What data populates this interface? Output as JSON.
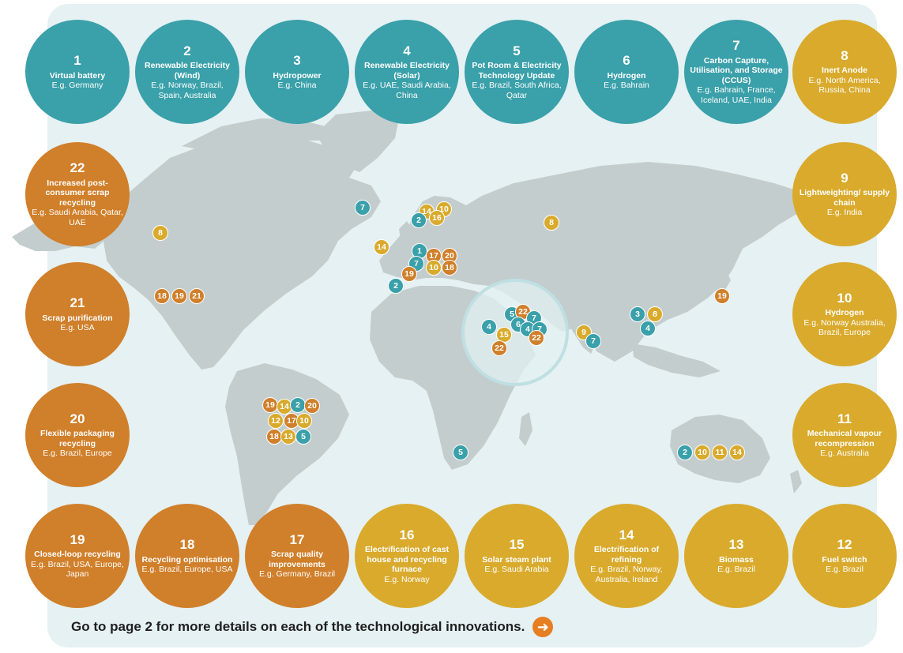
{
  "colors": {
    "teal": "#3aa0aa",
    "gold": "#d9aa2c",
    "orange": "#d07f2a",
    "land": "#c4cdce",
    "background": "#e5f1f2"
  },
  "technologies": [
    {
      "num": "1",
      "title": "Virtual battery",
      "example": "E.g. Germany",
      "color": "teal"
    },
    {
      "num": "2",
      "title": "Renewable Electricity (Wind)",
      "example": "E.g. Norway, Brazil, Spain, Australia",
      "color": "teal"
    },
    {
      "num": "3",
      "title": "Hydropower",
      "example": "E.g. China",
      "color": "teal"
    },
    {
      "num": "4",
      "title": "Renewable Electricity (Solar)",
      "example": "E.g. UAE, Saudi Arabia, China",
      "color": "teal"
    },
    {
      "num": "5",
      "title": "Pot Room & Electricity Technology Update",
      "example": "E.g. Brazil, South Africa, Qatar",
      "color": "teal"
    },
    {
      "num": "6",
      "title": "Hydrogen",
      "example": "E.g. Bahrain",
      "color": "teal"
    },
    {
      "num": "7",
      "title": "Carbon Capture, Utilisation, and Storage (CCUS)",
      "example": "E.g. Bahrain, France, Iceland, UAE, India",
      "color": "teal"
    },
    {
      "num": "8",
      "title": "Inert Anode",
      "example": "E.g. North America, Russia, China",
      "color": "gold"
    },
    {
      "num": "9",
      "title": "Lightweighting/ supply chain",
      "example": "E.g. India",
      "color": "gold"
    },
    {
      "num": "10",
      "title": "Hydrogen",
      "example": "E.g. Norway Australia, Brazil, Europe",
      "color": "gold"
    },
    {
      "num": "11",
      "title": "Mechanical vapour recompression",
      "example": "E.g. Australia",
      "color": "gold"
    },
    {
      "num": "12",
      "title": "Fuel switch",
      "example": "E.g. Brazil",
      "color": "gold"
    },
    {
      "num": "13",
      "title": "Biomass",
      "example": "E.g. Brazil",
      "color": "gold"
    },
    {
      "num": "14",
      "title": "Electrification of refining",
      "example": "E.g. Brazil, Norway, Australia, Ireland",
      "color": "gold"
    },
    {
      "num": "15",
      "title": "Solar steam plant",
      "example": "E.g. Saudi Arabia",
      "color": "gold"
    },
    {
      "num": "16",
      "title": "Electrification of cast house and recycling furnace",
      "example": "E.g. Norway",
      "color": "gold"
    },
    {
      "num": "17",
      "title": "Scrap quality improvements",
      "example": "E.g. Germany, Brazil",
      "color": "orange"
    },
    {
      "num": "18",
      "title": "Recycling optimisation",
      "example": "E.g. Brazil, Europe, USA",
      "color": "orange"
    },
    {
      "num": "19",
      "title": "Closed-loop recycling",
      "example": "E.g. Brazil, USA, Europe, Japan",
      "color": "orange"
    },
    {
      "num": "20",
      "title": "Flexible packaging recycling",
      "example": "E.g. Brazil, Europe",
      "color": "orange"
    },
    {
      "num": "21",
      "title": "Scrap purification",
      "example": "E.g. USA",
      "color": "orange"
    },
    {
      "num": "22",
      "title": "Increased post-consumer scrap recycling",
      "example": "E.g. Saudi Arabia, Qatar, UAE",
      "color": "orange"
    }
  ],
  "map_markers": [
    {
      "label": "7",
      "color": "teal"
    },
    {
      "label": "8",
      "color": "gold"
    },
    {
      "label": "18",
      "color": "orange"
    },
    {
      "label": "19",
      "color": "orange"
    },
    {
      "label": "21",
      "color": "orange"
    },
    {
      "label": "14",
      "color": "gold"
    },
    {
      "label": "10",
      "color": "gold"
    },
    {
      "label": "2",
      "color": "teal"
    },
    {
      "label": "14",
      "color": "gold"
    },
    {
      "label": "16",
      "color": "gold"
    },
    {
      "label": "14",
      "color": "gold"
    },
    {
      "label": "1",
      "color": "teal"
    },
    {
      "label": "17",
      "color": "orange"
    },
    {
      "label": "20",
      "color": "orange"
    },
    {
      "label": "7",
      "color": "teal"
    },
    {
      "label": "10",
      "color": "gold"
    },
    {
      "label": "18",
      "color": "orange"
    },
    {
      "label": "19",
      "color": "orange"
    },
    {
      "label": "2",
      "color": "teal"
    },
    {
      "label": "8",
      "color": "gold"
    },
    {
      "label": "3",
      "color": "teal"
    },
    {
      "label": "8",
      "color": "gold"
    },
    {
      "label": "4",
      "color": "teal"
    },
    {
      "label": "19",
      "color": "orange"
    },
    {
      "label": "9",
      "color": "gold"
    },
    {
      "label": "7",
      "color": "teal"
    },
    {
      "label": "5",
      "color": "teal"
    },
    {
      "label": "22",
      "color": "orange"
    },
    {
      "label": "7",
      "color": "teal"
    },
    {
      "label": "4",
      "color": "teal"
    },
    {
      "label": "6",
      "color": "teal"
    },
    {
      "label": "4",
      "color": "teal"
    },
    {
      "label": "7",
      "color": "teal"
    },
    {
      "label": "15",
      "color": "gold"
    },
    {
      "label": "22",
      "color": "orange"
    },
    {
      "label": "22",
      "color": "orange"
    },
    {
      "label": "19",
      "color": "orange"
    },
    {
      "label": "14",
      "color": "gold"
    },
    {
      "label": "2",
      "color": "teal"
    },
    {
      "label": "20",
      "color": "orange"
    },
    {
      "label": "12",
      "color": "gold"
    },
    {
      "label": "17",
      "color": "orange"
    },
    {
      "label": "10",
      "color": "gold"
    },
    {
      "label": "18",
      "color": "orange"
    },
    {
      "label": "13",
      "color": "gold"
    },
    {
      "label": "5",
      "color": "teal"
    },
    {
      "label": "5",
      "color": "teal"
    },
    {
      "label": "2",
      "color": "teal"
    },
    {
      "label": "10",
      "color": "gold"
    },
    {
      "label": "11",
      "color": "gold"
    },
    {
      "label": "14",
      "color": "gold"
    }
  ],
  "footer": {
    "text": "Go to page 2 for more details on each of the technological innovations.",
    "arrow_icon": "arrow-right-icon"
  }
}
